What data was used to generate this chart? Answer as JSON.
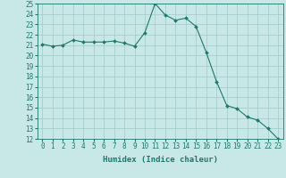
{
  "xlabel": "Humidex (Indice chaleur)",
  "x": [
    0,
    1,
    2,
    3,
    4,
    5,
    6,
    7,
    8,
    9,
    10,
    11,
    12,
    13,
    14,
    15,
    16,
    17,
    18,
    19,
    20,
    21,
    22,
    23
  ],
  "y": [
    21.1,
    20.9,
    21.0,
    21.5,
    21.3,
    21.3,
    21.3,
    21.4,
    21.2,
    20.9,
    22.2,
    25.0,
    23.9,
    23.4,
    23.6,
    22.8,
    20.3,
    17.5,
    15.2,
    14.9,
    14.1,
    13.8,
    13.0,
    12.0
  ],
  "line_color": "#1a7a6e",
  "marker": "D",
  "marker_size": 2.0,
  "bg_color": "#c8e8e8",
  "grid_color": "#a0c8c8",
  "ylim": [
    12,
    25
  ],
  "yticks": [
    12,
    13,
    14,
    15,
    16,
    17,
    18,
    19,
    20,
    21,
    22,
    23,
    24,
    25
  ],
  "xticks": [
    0,
    1,
    2,
    3,
    4,
    5,
    6,
    7,
    8,
    9,
    10,
    11,
    12,
    13,
    14,
    15,
    16,
    17,
    18,
    19,
    20,
    21,
    22,
    23
  ],
  "label_fontsize": 6.5,
  "tick_fontsize": 5.5
}
